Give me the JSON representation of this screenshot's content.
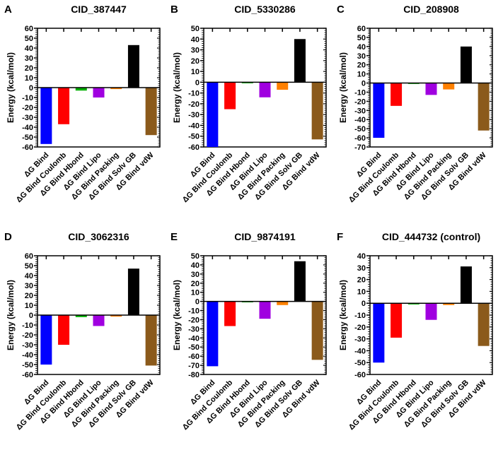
{
  "chart_data": [
    {
      "type": "bar",
      "panel": "A",
      "title": "CID_387447",
      "ylabel": "Energy (kcal/mol)",
      "ylim": [
        -60,
        60
      ],
      "categories": [
        "ΔG Bind",
        "ΔG Bind Coulomb",
        "ΔG Bind Hbond",
        "ΔG Bind Lipo",
        "ΔG Bind Packing",
        "ΔG Bind Solv GB",
        "ΔG Bind vdW"
      ],
      "values": [
        -57,
        -37,
        -3,
        -10,
        -1.5,
        43,
        -48
      ]
    },
    {
      "type": "bar",
      "panel": "B",
      "title": "CID_5330286",
      "ylabel": "Energy (kcal/mol)",
      "ylim": [
        -60,
        50
      ],
      "categories": [
        "ΔG Bind",
        "ΔG Bind Coulomb",
        "ΔG Bind Hbond",
        "ΔG Bind Lipo",
        "ΔG Bind Packing",
        "ΔG Bind Solv GB",
        "ΔG Bind vdW"
      ],
      "values": [
        -60,
        -25,
        -1,
        -14,
        -7,
        40,
        -53
      ]
    },
    {
      "type": "bar",
      "panel": "C",
      "title": "CID_208908",
      "ylabel": "Energy (kcal/mol)",
      "ylim": [
        -70,
        60
      ],
      "categories": [
        "ΔG Bind",
        "ΔG Bind Coulomb",
        "ΔG Bind Hbond",
        "ΔG Bind Lipo",
        "ΔG Bind Packing",
        "ΔG Bind Solv GB",
        "ΔG Bind vdW"
      ],
      "values": [
        -60,
        -25,
        -1,
        -13,
        -7,
        40,
        -52
      ]
    },
    {
      "type": "bar",
      "panel": "D",
      "title": "CID_3062316",
      "ylabel": "Energy (kcal/mol)",
      "ylim": [
        -60,
        60
      ],
      "categories": [
        "ΔG Bind",
        "ΔG Bind Coulomb",
        "ΔG Bind Hbond",
        "ΔG Bind Lipo",
        "ΔG Bind Packing",
        "ΔG Bind Solv GB",
        "ΔG Bind vdW"
      ],
      "values": [
        -50,
        -30,
        -2,
        -11,
        -1.5,
        47,
        -51
      ]
    },
    {
      "type": "bar",
      "panel": "E",
      "title": "CID_9874191",
      "ylabel": "Energy (kcal/mol)",
      "ylim": [
        -80,
        50
      ],
      "categories": [
        "ΔG Bind",
        "ΔG Bind Coulomb",
        "ΔG Bind Hbond",
        "ΔG Bind Lipo",
        "ΔG Bind Packing",
        "ΔG Bind Solv GB",
        "ΔG Bind vdW"
      ],
      "values": [
        -71,
        -27,
        -1,
        -19,
        -4,
        44,
        -64
      ]
    },
    {
      "type": "bar",
      "panel": "F",
      "title": "CID_444732 (control)",
      "ylabel": "Energy (kcal/mol)",
      "ylim": [
        -60,
        40
      ],
      "categories": [
        "ΔG Bind",
        "ΔG Bind Coulomb",
        "ΔG Bind Hbond",
        "ΔG Bind Lipo",
        "ΔG Bind Packing",
        "ΔG Bind Solv GB",
        "ΔG Bind vdW"
      ],
      "values": [
        -50,
        -29,
        -1,
        -14,
        -1.5,
        31,
        -36
      ]
    }
  ],
  "colors": [
    "#0000ff",
    "#ff0000",
    "#00b000",
    "#a000e0",
    "#ff8000",
    "#000000",
    "#8b5a1b"
  ]
}
